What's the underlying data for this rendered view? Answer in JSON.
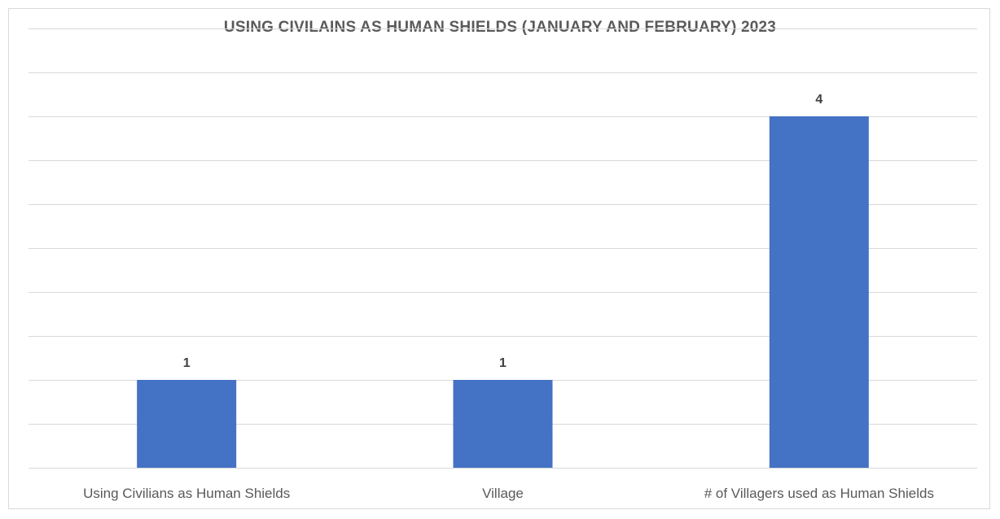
{
  "chart_data": {
    "type": "bar",
    "title": "USING CIVILAINS AS HUMAN SHIELDS  (JANUARY AND FEBRUARY) 2023",
    "categories": [
      "Using Civilians as Human Shields",
      "Village",
      "# of Villagers used as Human Shields"
    ],
    "values": [
      1,
      1,
      4
    ],
    "data_labels": [
      "1",
      "1",
      "4"
    ],
    "xlabel": "",
    "ylabel": "",
    "ylim": [
      0,
      5
    ],
    "grid": true,
    "legend": "none",
    "bar_color": "#4472c4"
  }
}
